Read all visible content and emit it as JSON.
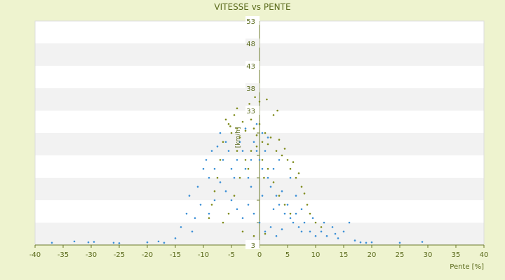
{
  "chart_data": {
    "type": "scatter",
    "title": "VITESSE vs PENTE",
    "xlabel": "Pente [%]",
    "ylabel": "[km/h]",
    "xlim": [
      -40,
      40
    ],
    "ylim": [
      3,
      53
    ],
    "xticks": [
      "-40",
      "-35",
      "-30",
      "-25",
      "-20",
      "-15",
      "-10",
      "-5",
      "0",
      "5",
      "10",
      "15",
      "20",
      "25",
      "30",
      "35",
      "40"
    ],
    "yticks": [
      "53",
      "48",
      "43",
      "38",
      "33",
      "",
      "",
      "",
      "",
      "",
      "3"
    ],
    "grid": "horizontal alternating bands",
    "legend": "none",
    "colors": {
      "background": "#eef3cf",
      "plot_light": "#ffffff",
      "plot_band": "#f2f2f2",
      "axis": "#6b7a2a",
      "text": "#5a6a1c",
      "series_blue": "#3a8fd6",
      "series_olive": "#7f8b1c"
    },
    "series": [
      {
        "color": "#7f8b1c",
        "description": "olive points (denser at moderate slopes, higher speeds)",
        "points": [
          [
            -6.0,
            31.0
          ],
          [
            -5.5,
            30.0
          ],
          [
            -5.0,
            28.0
          ],
          [
            -4.5,
            32.0
          ],
          [
            -4.0,
            33.5
          ],
          [
            -4.0,
            29.0
          ],
          [
            -3.5,
            27.0
          ],
          [
            -3.0,
            30.5
          ],
          [
            -2.5,
            28.5
          ],
          [
            -2.0,
            33.0
          ],
          [
            -1.5,
            31.0
          ],
          [
            -1.0,
            29.0
          ],
          [
            -0.5,
            27.5
          ],
          [
            0.0,
            30.0
          ],
          [
            0.5,
            26.0
          ],
          [
            1.0,
            28.0
          ],
          [
            1.5,
            25.5
          ],
          [
            2.0,
            27.0
          ],
          [
            2.5,
            32.0
          ],
          [
            3.0,
            24.0
          ],
          [
            3.5,
            26.5
          ],
          [
            4.0,
            23.0
          ],
          [
            4.5,
            24.5
          ],
          [
            5.0,
            22.0
          ],
          [
            5.5,
            20.0
          ],
          [
            6.0,
            21.5
          ],
          [
            6.5,
            18.0
          ],
          [
            7.0,
            19.0
          ],
          [
            7.5,
            16.0
          ],
          [
            8.0,
            14.5
          ],
          [
            8.5,
            12.0
          ],
          [
            9.0,
            10.0
          ],
          [
            10.0,
            8.0
          ],
          [
            11.0,
            7.0
          ],
          [
            -7.0,
            22.0
          ],
          [
            -7.5,
            18.0
          ],
          [
            -8.0,
            15.0
          ],
          [
            -8.5,
            12.0
          ],
          [
            -9.0,
            9.0
          ],
          [
            -6.5,
            8.0
          ],
          [
            -5.5,
            10.0
          ],
          [
            -4.5,
            14.0
          ],
          [
            -3.5,
            18.0
          ],
          [
            -2.5,
            22.0
          ],
          [
            -1.5,
            24.0
          ],
          [
            -0.5,
            25.0
          ],
          [
            0.5,
            22.0
          ],
          [
            1.5,
            20.0
          ],
          [
            2.5,
            17.0
          ],
          [
            3.5,
            14.0
          ],
          [
            4.5,
            12.0
          ],
          [
            5.5,
            10.0
          ],
          [
            -3.0,
            6.0
          ],
          [
            -1.0,
            5.0
          ],
          [
            1.0,
            5.5
          ],
          [
            0.0,
            35.0
          ],
          [
            1.3,
            35.5
          ],
          [
            -1.8,
            34.5
          ],
          [
            -0.8,
            36.0
          ],
          [
            3.2,
            33.0
          ],
          [
            -5.2,
            29.5
          ],
          [
            -6.5,
            26.0
          ],
          [
            -4.0,
            24.0
          ],
          [
            -2.0,
            20.0
          ],
          [
            0.8,
            18.0
          ]
        ]
      },
      {
        "color": "#3a8fd6",
        "description": "blue points (wide spread, tails toward steep slopes at low speeds)",
        "points": [
          [
            -37.0,
            3.5
          ],
          [
            -33.0,
            3.8
          ],
          [
            -30.5,
            3.6
          ],
          [
            -29.5,
            3.7
          ],
          [
            -26.0,
            3.5
          ],
          [
            -25.0,
            3.4
          ],
          [
            -20.0,
            3.6
          ],
          [
            -18.0,
            3.8
          ],
          [
            -17.0,
            3.5
          ],
          [
            -15.0,
            4.5
          ],
          [
            -14.0,
            7.0
          ],
          [
            -13.0,
            10.0
          ],
          [
            -12.5,
            14.0
          ],
          [
            -12.0,
            6.0
          ],
          [
            -11.5,
            9.0
          ],
          [
            -11.0,
            16.0
          ],
          [
            -10.5,
            12.0
          ],
          [
            -10.0,
            20.0
          ],
          [
            -9.5,
            22.0
          ],
          [
            -9.0,
            18.0
          ],
          [
            -8.5,
            24.0
          ],
          [
            -8.0,
            20.0
          ],
          [
            -7.5,
            25.0
          ],
          [
            -7.0,
            28.0
          ],
          [
            -6.5,
            22.0
          ],
          [
            -6.0,
            26.0
          ],
          [
            -5.5,
            24.0
          ],
          [
            -5.0,
            20.0
          ],
          [
            -4.5,
            18.0
          ],
          [
            -4.0,
            22.0
          ],
          [
            -3.5,
            26.0
          ],
          [
            -3.0,
            24.0
          ],
          [
            -2.5,
            20.0
          ],
          [
            -2.0,
            18.0
          ],
          [
            -1.5,
            22.0
          ],
          [
            -1.0,
            26.0
          ],
          [
            -0.5,
            24.0
          ],
          [
            0.0,
            22.0
          ],
          [
            0.5,
            20.0
          ],
          [
            1.0,
            24.0
          ],
          [
            1.5,
            18.0
          ],
          [
            2.0,
            16.0
          ],
          [
            2.5,
            20.0
          ],
          [
            3.0,
            14.0
          ],
          [
            3.5,
            12.0
          ],
          [
            4.0,
            15.0
          ],
          [
            4.5,
            10.0
          ],
          [
            5.0,
            12.0
          ],
          [
            5.5,
            9.0
          ],
          [
            6.0,
            8.0
          ],
          [
            6.5,
            10.0
          ],
          [
            7.0,
            7.0
          ],
          [
            7.5,
            6.0
          ],
          [
            8.0,
            8.0
          ],
          [
            9.0,
            6.0
          ],
          [
            10.0,
            5.0
          ],
          [
            11.0,
            6.0
          ],
          [
            12.0,
            5.0
          ],
          [
            13.0,
            7.0
          ],
          [
            14.0,
            4.5
          ],
          [
            15.0,
            6.0
          ],
          [
            16.0,
            8.0
          ],
          [
            17.0,
            4.0
          ],
          [
            18.0,
            3.6
          ],
          [
            19.0,
            3.5
          ],
          [
            20.0,
            3.6
          ],
          [
            25.0,
            3.5
          ],
          [
            29.0,
            3.7
          ],
          [
            -2.0,
            12.0
          ],
          [
            -1.0,
            10.0
          ],
          [
            0.0,
            8.0
          ],
          [
            1.0,
            6.0
          ],
          [
            2.0,
            7.0
          ],
          [
            3.0,
            5.0
          ],
          [
            -3.0,
            9.0
          ],
          [
            -4.0,
            11.0
          ],
          [
            -5.0,
            13.0
          ],
          [
            -6.0,
            15.0
          ],
          [
            -7.0,
            17.0
          ],
          [
            -8.0,
            13.0
          ],
          [
            -9.0,
            10.0
          ],
          [
            -1.5,
            16.0
          ],
          [
            0.5,
            14.0
          ],
          [
            2.5,
            11.0
          ],
          [
            4.0,
            6.5
          ],
          [
            -0.5,
            30.0
          ],
          [
            0.5,
            28.0
          ],
          [
            -2.5,
            29.0
          ],
          [
            1.5,
            27.0
          ],
          [
            3.5,
            22.0
          ],
          [
            5.5,
            18.0
          ],
          [
            6.5,
            14.0
          ],
          [
            7.5,
            11.0
          ],
          [
            9.5,
            9.0
          ],
          [
            11.5,
            8.0
          ],
          [
            13.5,
            5.5
          ]
        ]
      }
    ]
  }
}
